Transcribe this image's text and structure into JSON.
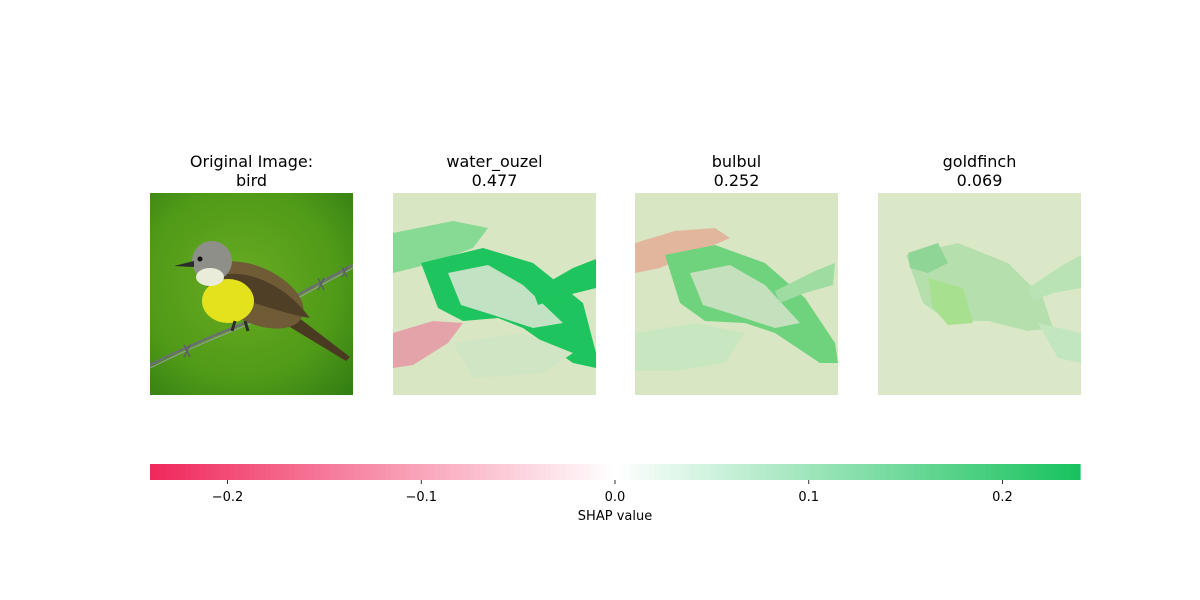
{
  "panels": [
    {
      "title": "Original Image:\nbird"
    },
    {
      "title": "water_ouzel\n 0.477",
      "class": "water_ouzel",
      "score": 0.477
    },
    {
      "title": "bulbul\n 0.252",
      "class": "bulbul",
      "score": 0.252
    },
    {
      "title": "goldfinch\n 0.069",
      "class": "goldfinch",
      "score": 0.069
    }
  ],
  "chart_data": {
    "type": "heatmap",
    "colorbar": {
      "label": "SHAP value",
      "range": [
        -0.24,
        0.24
      ],
      "ticks": [
        -0.2,
        -0.1,
        0.0,
        0.1,
        0.2
      ],
      "tick_labels": [
        "−0.2",
        "−0.1",
        "0.0",
        "0.1",
        "0.2"
      ],
      "negative_color": "#f0275b",
      "zero_color": "#ffffff",
      "positive_color": "#17c25d"
    }
  }
}
